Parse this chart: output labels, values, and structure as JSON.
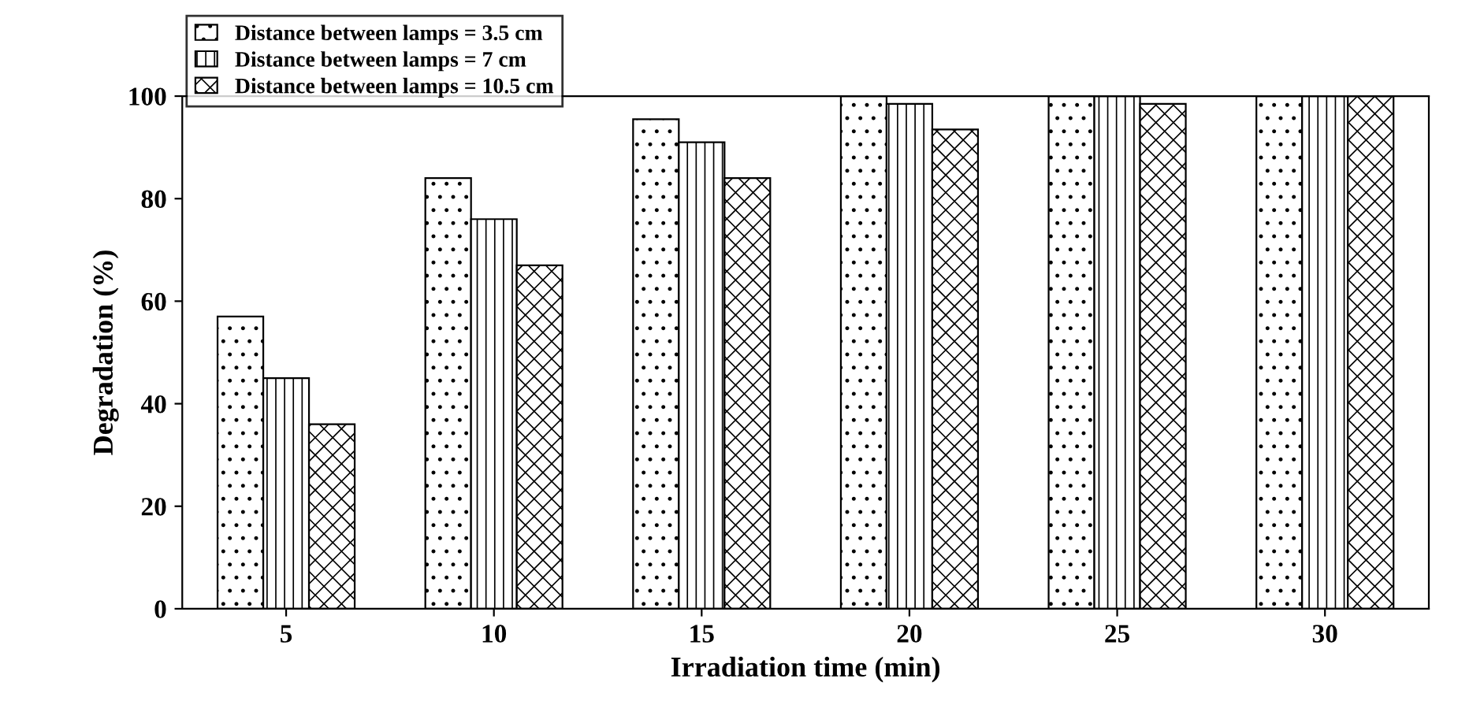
{
  "chart_data": {
    "type": "bar",
    "xlabel": "Irradiation time (min)",
    "ylabel": "Degradation (%)",
    "categories": [
      "5",
      "10",
      "15",
      "20",
      "25",
      "30"
    ],
    "series": [
      {
        "name": "Distance between lamps = 3.5 cm",
        "color": "#000000",
        "values": [
          57,
          84,
          95.5,
          100,
          100,
          100
        ]
      },
      {
        "name": "Distance between lamps = 7 cm",
        "color": "#000000",
        "values": [
          45,
          76,
          91,
          98.5,
          100,
          100
        ]
      },
      {
        "name": "Distance between lamps = 10.5 cm",
        "color": "#000000",
        "values": [
          36,
          67,
          84,
          93.5,
          98.5,
          100
        ]
      }
    ],
    "ylim": [
      0,
      100
    ],
    "yticks": [
      0,
      20,
      40,
      60,
      80,
      100
    ],
    "grid": false,
    "legend": "top left"
  }
}
